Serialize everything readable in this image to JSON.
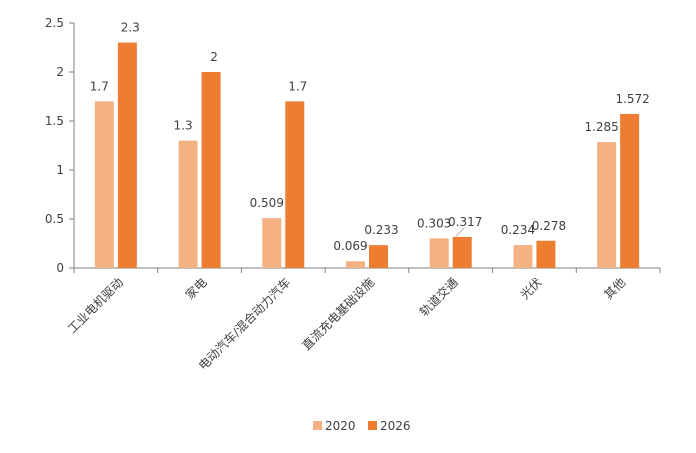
{
  "chart_data": {
    "type": "bar",
    "title": "",
    "xlabel": "",
    "ylabel": "",
    "categories": [
      "工业电机驱动",
      "家电",
      "电动汽车/混合动力汽车",
      "直流充电基础设施",
      "轨道交通",
      "光伏",
      "其他"
    ],
    "series": [
      {
        "name": "2020",
        "values": [
          1.7,
          1.3,
          0.509,
          0.069,
          0.303,
          0.234,
          1.285
        ],
        "labels": [
          "1.7",
          "1.3",
          "0.509",
          "0.069",
          "0.303",
          "0.234",
          "1.285"
        ],
        "color": "#F4B183"
      },
      {
        "name": "2026",
        "values": [
          2.3,
          2,
          1.7,
          0.233,
          0.317,
          0.278,
          1.572
        ],
        "labels": [
          "2.3",
          "2",
          "1.7",
          "0.233",
          "0.317",
          "0.278",
          "1.572"
        ],
        "color": "#ED7D31"
      }
    ],
    "ylim": [
      0,
      2.5
    ],
    "yticks": [
      "0",
      "0.5",
      "1",
      "1.5",
      "2",
      "2.5"
    ],
    "grid": false,
    "legend_position": "bottom"
  }
}
